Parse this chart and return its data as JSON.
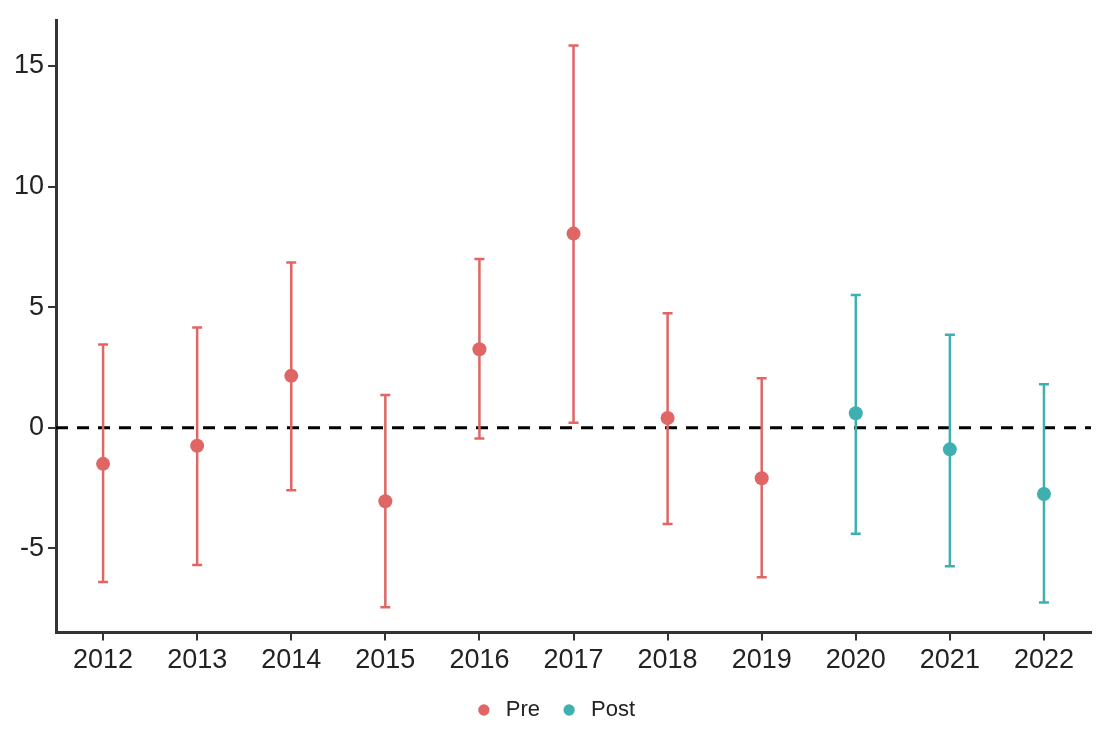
{
  "chart_data": {
    "type": "scatter",
    "categories": [
      "2012",
      "2013",
      "2014",
      "2015",
      "2016",
      "2017",
      "2018",
      "2019",
      "2020",
      "2021",
      "2022"
    ],
    "series": [
      {
        "name": "Pre",
        "color": "#e06666",
        "values": [
          -1.5,
          -0.75,
          2.15,
          -3.05,
          3.25,
          8.05,
          0.4,
          -2.1,
          null,
          null,
          null
        ],
        "errors": [
          [
            -6.4,
            3.45
          ],
          [
            -5.7,
            4.15
          ],
          [
            -2.6,
            6.85
          ],
          [
            -7.45,
            1.35
          ],
          [
            -0.45,
            7.0
          ],
          [
            0.2,
            15.85
          ],
          [
            -4.0,
            4.75
          ],
          [
            -6.2,
            2.05
          ],
          null,
          null,
          null
        ]
      },
      {
        "name": "Post",
        "color": "#3fb0b0",
        "values": [
          null,
          null,
          null,
          null,
          null,
          null,
          null,
          null,
          0.6,
          -0.9,
          -2.75
        ],
        "errors": [
          null,
          null,
          null,
          null,
          null,
          null,
          null,
          null,
          [
            -4.4,
            5.5
          ],
          [
            -5.75,
            3.85
          ],
          [
            -7.25,
            1.8
          ]
        ]
      }
    ],
    "ylim": [
      -8.5,
      16.9
    ],
    "yticks": [
      -5,
      0,
      5,
      10,
      15
    ],
    "ref_lines": [
      {
        "axis": "y",
        "value": 0,
        "color": "#000000",
        "line_style": "dashed"
      }
    ],
    "grid": false,
    "legend": "bottom",
    "marker": "circle"
  }
}
